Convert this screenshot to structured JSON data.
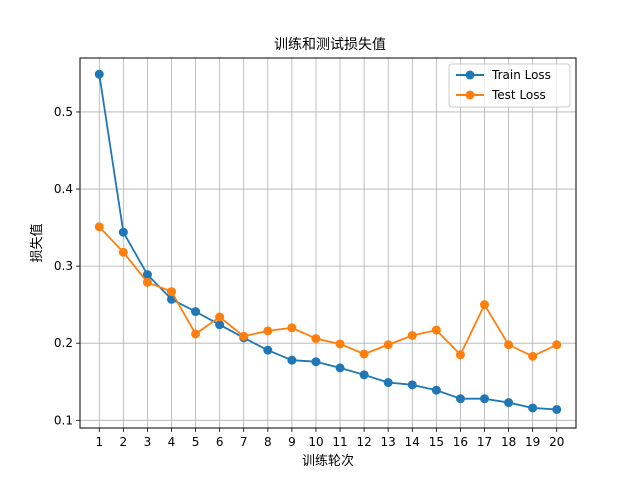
{
  "chart_data": {
    "type": "line",
    "title": "训练和测试损失值",
    "xlabel": "训练轮次",
    "ylabel": "损失值",
    "x": [
      1,
      2,
      3,
      4,
      5,
      6,
      7,
      8,
      9,
      10,
      11,
      12,
      13,
      14,
      15,
      16,
      17,
      18,
      19,
      20
    ],
    "xlim": [
      0.2,
      20.8
    ],
    "ylim": [
      0.09,
      0.57
    ],
    "yticks": [
      0.1,
      0.2,
      0.3,
      0.4,
      0.5
    ],
    "grid": true,
    "legend_position": "top-right",
    "series": [
      {
        "name": "Train Loss",
        "color": "#1f77b4",
        "values": [
          0.549,
          0.344,
          0.289,
          0.257,
          0.241,
          0.224,
          0.207,
          0.191,
          0.178,
          0.176,
          0.168,
          0.159,
          0.149,
          0.146,
          0.139,
          0.128,
          0.128,
          0.123,
          0.116,
          0.114
        ]
      },
      {
        "name": "Test Loss",
        "color": "#ff7f0e",
        "values": [
          0.351,
          0.318,
          0.279,
          0.267,
          0.212,
          0.234,
          0.209,
          0.216,
          0.22,
          0.206,
          0.199,
          0.186,
          0.198,
          0.21,
          0.217,
          0.185,
          0.25,
          0.198,
          0.183,
          0.198
        ]
      }
    ]
  }
}
